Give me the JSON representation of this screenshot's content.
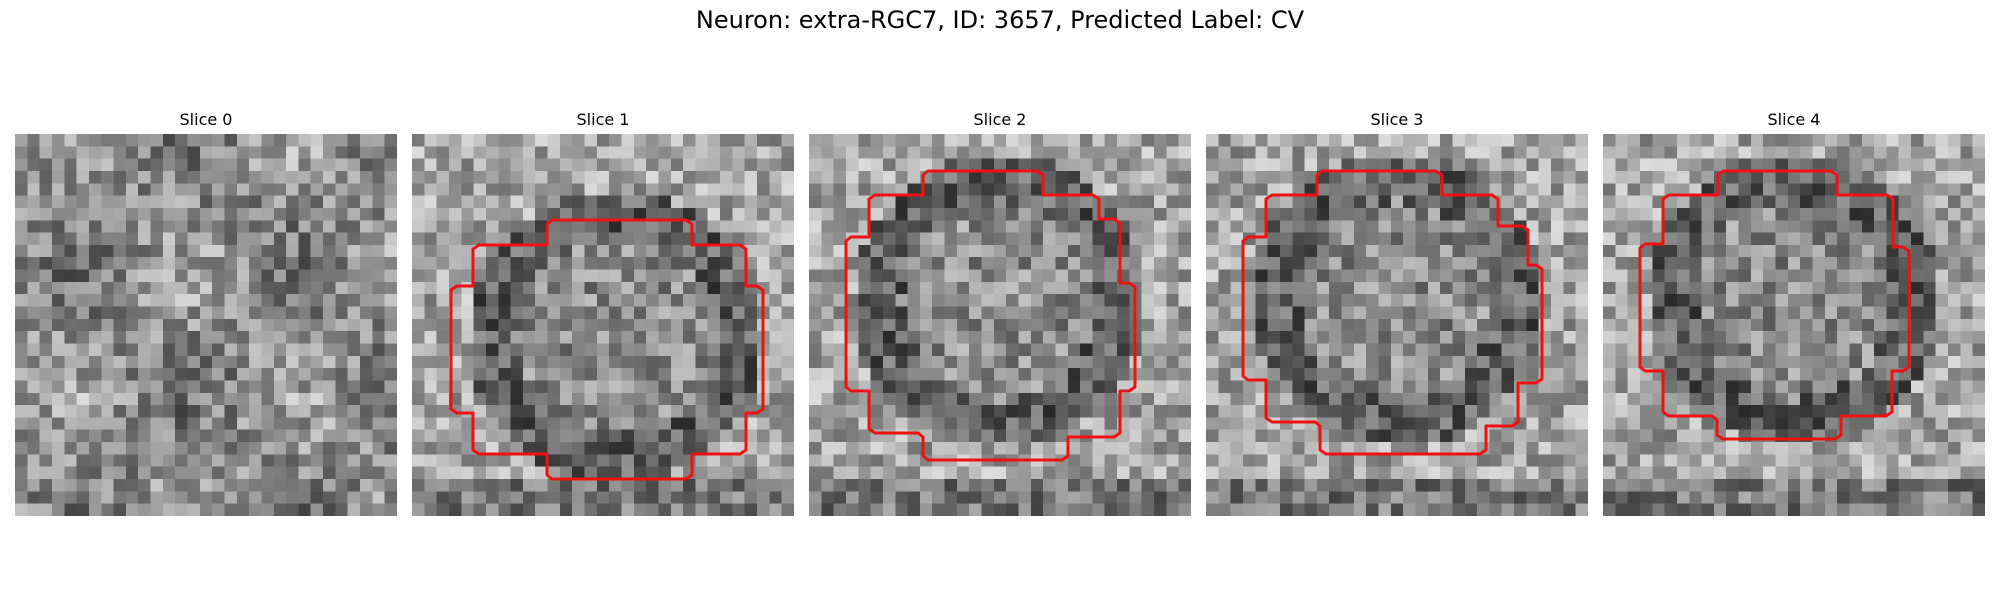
{
  "title": "Neuron: extra-RGC7, ID: 3657, Predicted Label: CV",
  "contour_color": "#ee1111",
  "slices": [
    {
      "label": "Slice 0",
      "has_contour": false
    },
    {
      "label": "Slice 1",
      "has_contour": true
    },
    {
      "label": "Slice 2",
      "has_contour": true
    },
    {
      "label": "Slice 3",
      "has_contour": true
    },
    {
      "label": "Slice 4",
      "has_contour": true
    }
  ]
}
